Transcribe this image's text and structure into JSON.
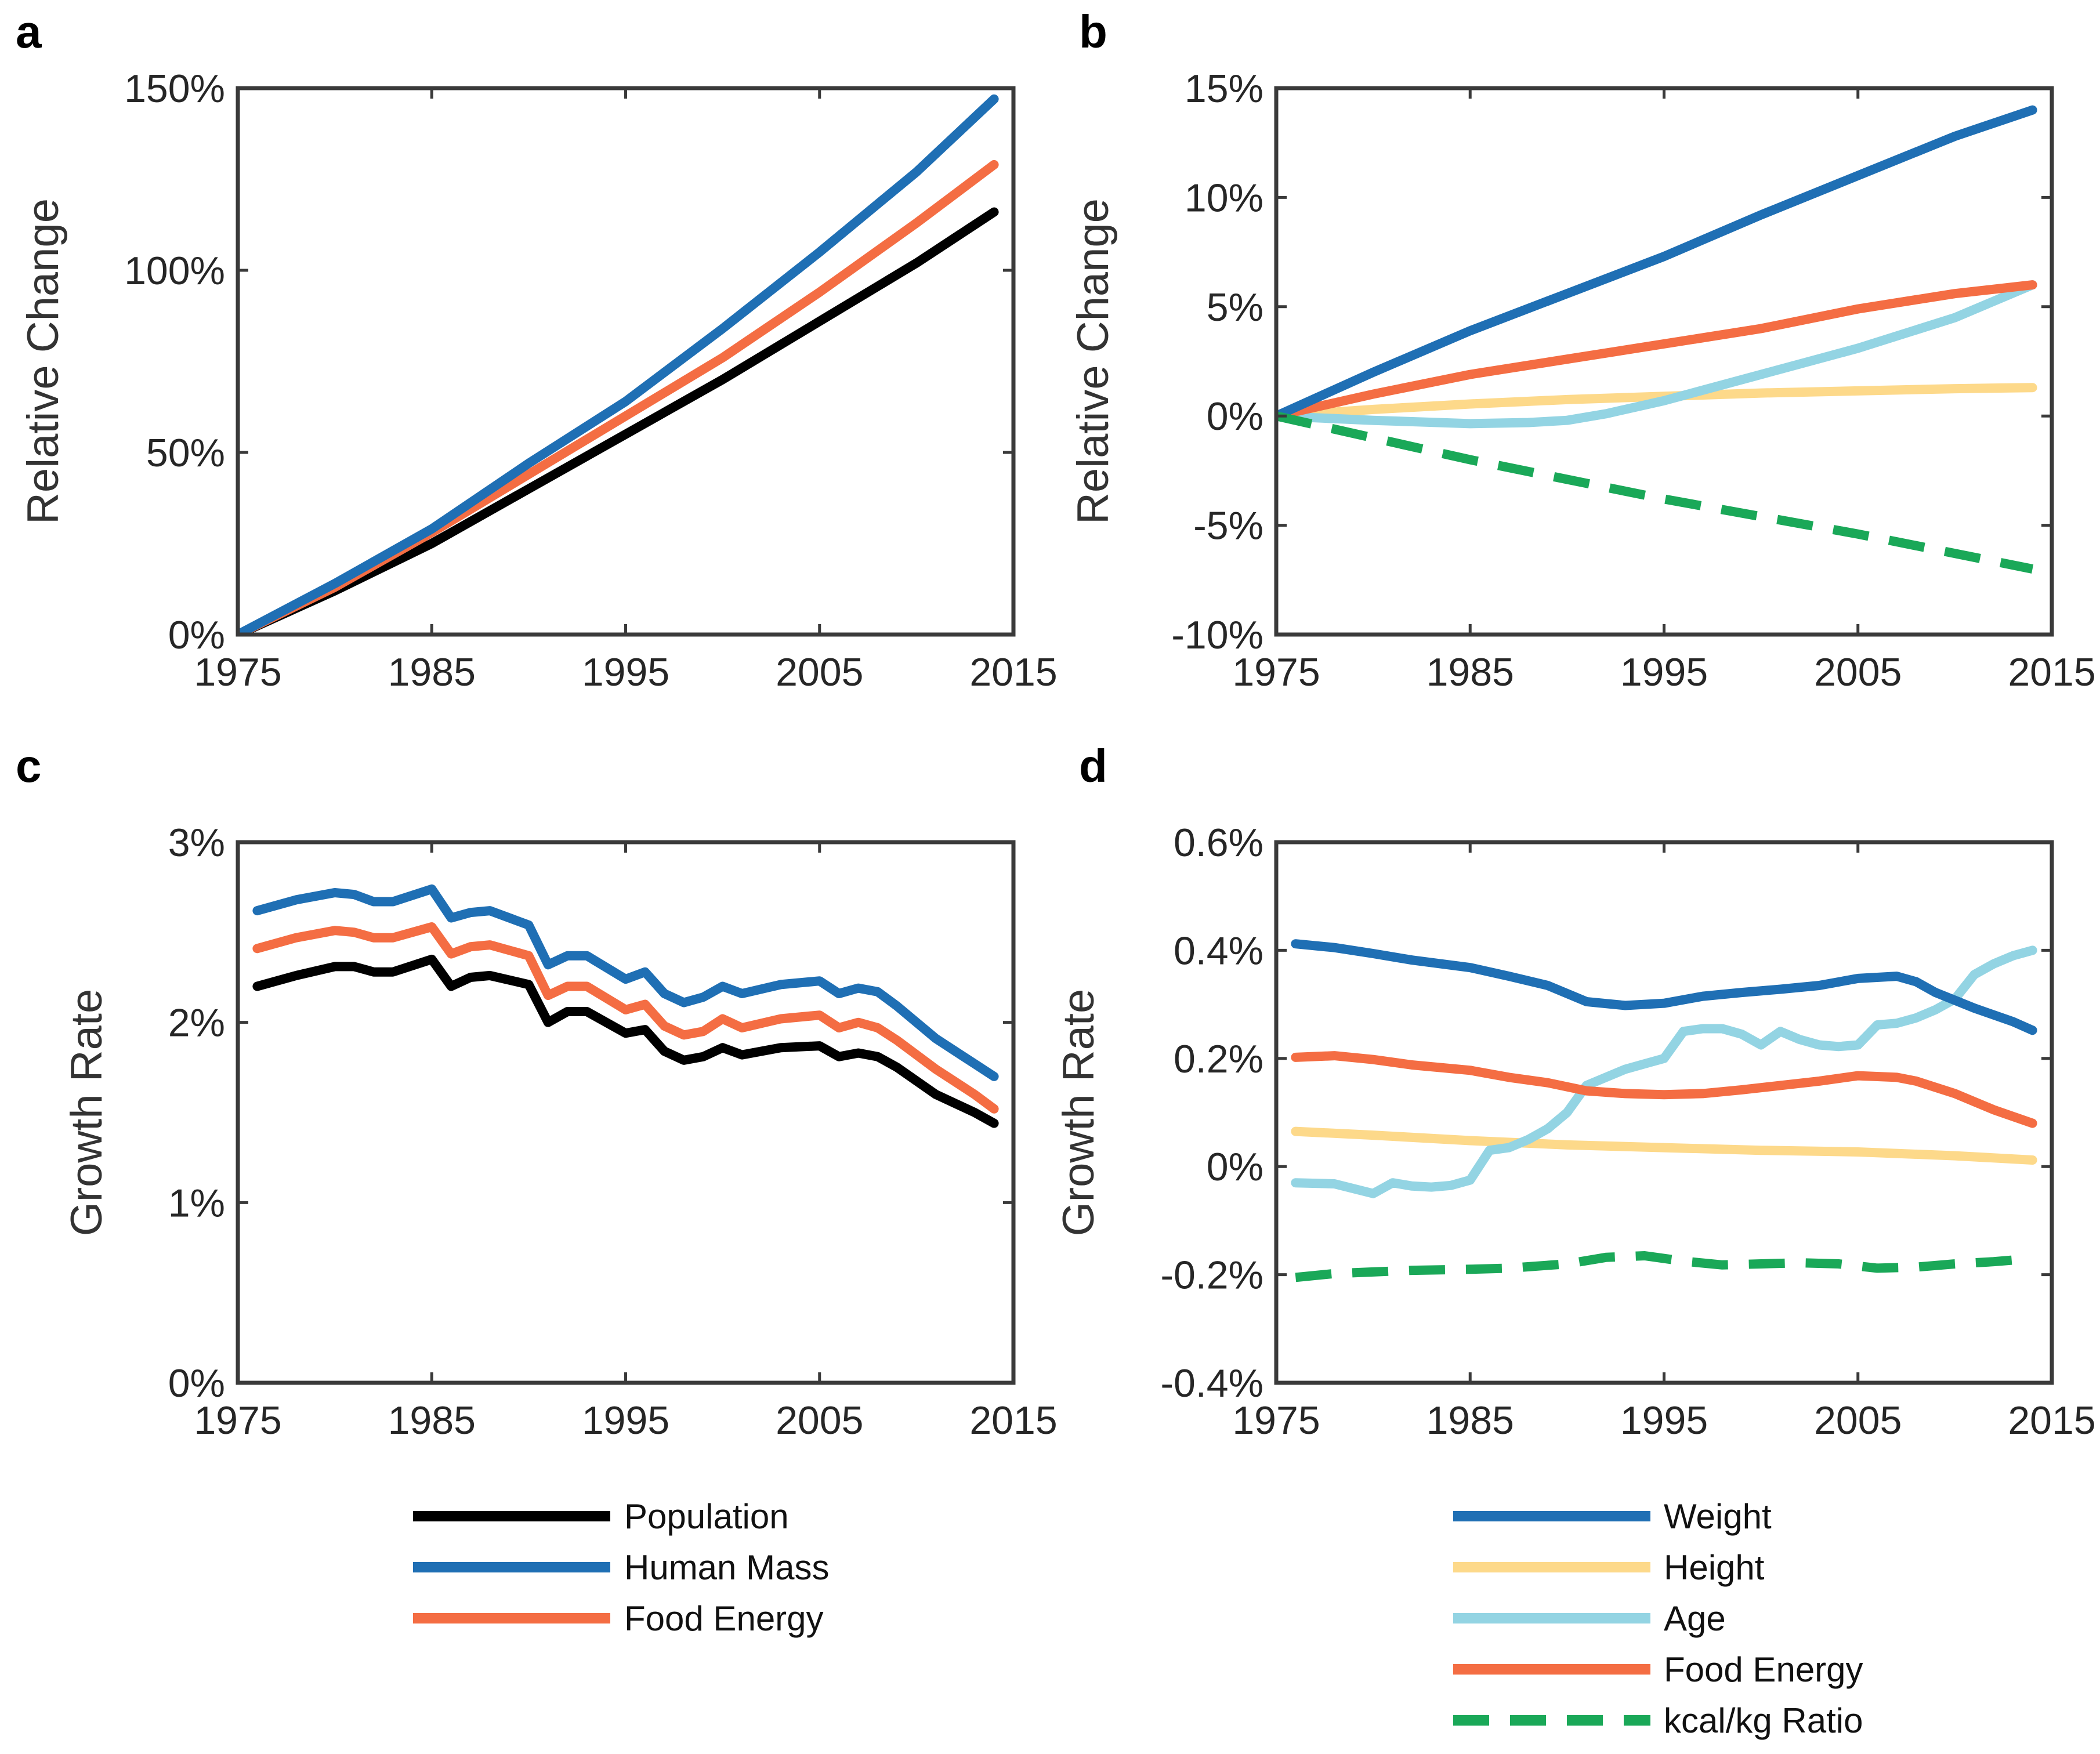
{
  "chart_data": [
    {
      "panel": "a",
      "type": "line",
      "xlabel": "",
      "ylabel": "Relative Change",
      "xlim": [
        1975,
        2015
      ],
      "ylim": [
        0,
        150
      ],
      "xticks": [
        1975,
        1985,
        1995,
        2005,
        2015
      ],
      "xtick_labels": [
        "1975",
        "1985",
        "1995",
        "2005",
        "2015"
      ],
      "yticks": [
        0,
        50,
        100,
        150
      ],
      "ytick_labels": [
        "0%",
        "50%",
        "100%",
        "150%"
      ],
      "series": [
        {
          "name": "Population",
          "color": "#000000",
          "x": [
            1975,
            1980,
            1985,
            1990,
            1995,
            2000,
            2005,
            2010,
            2014
          ],
          "y": [
            0,
            12,
            25,
            40,
            55,
            70,
            86,
            102,
            116
          ]
        },
        {
          "name": "Food Energy",
          "color": "#f46d43",
          "x": [
            1975,
            1980,
            1985,
            1990,
            1995,
            2000,
            2005,
            2010,
            2014
          ],
          "y": [
            0,
            13,
            28,
            44,
            60,
            76,
            94,
            113,
            129
          ]
        },
        {
          "name": "Human Mass",
          "color": "#1f6fb4",
          "x": [
            1975,
            1980,
            1985,
            1990,
            1995,
            2000,
            2005,
            2010,
            2014
          ],
          "y": [
            0,
            14,
            29,
            47,
            64,
            84,
            105,
            127,
            147
          ]
        }
      ]
    },
    {
      "panel": "b",
      "type": "line",
      "xlabel": "",
      "ylabel": "Relative Change",
      "xlim": [
        1975,
        2015
      ],
      "ylim": [
        -10,
        15
      ],
      "xticks": [
        1975,
        1985,
        1995,
        2005,
        2015
      ],
      "xtick_labels": [
        "1975",
        "1985",
        "1995",
        "2005",
        "2015"
      ],
      "yticks": [
        -10,
        -5,
        0,
        5,
        10,
        15
      ],
      "ytick_labels": [
        "-10%",
        "-5%",
        "0%",
        "5%",
        "10%",
        "15%"
      ],
      "series": [
        {
          "name": "Height",
          "color": "#fdd98a",
          "x": [
            1975,
            1980,
            1985,
            1990,
            1995,
            2000,
            2005,
            2010,
            2014
          ],
          "y": [
            0,
            0.3,
            0.55,
            0.75,
            0.9,
            1.05,
            1.15,
            1.25,
            1.3
          ]
        },
        {
          "name": "Age",
          "color": "#93d4e3",
          "x": [
            1975,
            1980,
            1985,
            1988,
            1990,
            1992,
            1995,
            2000,
            2005,
            2010,
            2014
          ],
          "y": [
            0,
            -0.2,
            -0.35,
            -0.3,
            -0.2,
            0.1,
            0.7,
            1.9,
            3.1,
            4.5,
            6.0
          ]
        },
        {
          "name": "Food Energy",
          "color": "#f46d43",
          "x": [
            1975,
            1980,
            1985,
            1990,
            1995,
            2000,
            2005,
            2010,
            2014
          ],
          "y": [
            0,
            1.0,
            1.9,
            2.6,
            3.3,
            4.0,
            4.9,
            5.6,
            6.0
          ]
        },
        {
          "name": "Weight",
          "color": "#1f6fb4",
          "x": [
            1975,
            1980,
            1985,
            1990,
            1995,
            2000,
            2005,
            2010,
            2014
          ],
          "y": [
            0,
            2.0,
            3.9,
            5.6,
            7.3,
            9.2,
            11.0,
            12.8,
            14.0
          ]
        },
        {
          "name": "kcal/kg Ratio",
          "color": "#1aa858",
          "dashed": true,
          "x": [
            1975,
            1985,
            1995,
            2005,
            2014
          ],
          "y": [
            0,
            -2.0,
            -3.8,
            -5.4,
            -7.0
          ]
        }
      ]
    },
    {
      "panel": "c",
      "type": "line",
      "xlabel": "",
      "ylabel": "Growth Rate",
      "xlim": [
        1975,
        2015
      ],
      "ylim": [
        0,
        3
      ],
      "xticks": [
        1975,
        1985,
        1995,
        2005,
        2015
      ],
      "xtick_labels": [
        "1975",
        "1985",
        "1995",
        "2005",
        "2015"
      ],
      "yticks": [
        0,
        1,
        2,
        3
      ],
      "ytick_labels": [
        "0%",
        "1%",
        "2%",
        "3%"
      ],
      "series": [
        {
          "name": "Population",
          "color": "#000000",
          "x": [
            1976,
            1978,
            1980,
            1981,
            1982,
            1983,
            1985,
            1986,
            1987,
            1988,
            1990,
            1991,
            1992,
            1993,
            1995,
            1996,
            1997,
            1998,
            1999,
            2000,
            2001,
            2003,
            2005,
            2006,
            2007,
            2008,
            2009,
            2011,
            2013,
            2014
          ],
          "y": [
            2.2,
            2.26,
            2.31,
            2.31,
            2.28,
            2.28,
            2.35,
            2.2,
            2.25,
            2.26,
            2.21,
            2.0,
            2.06,
            2.06,
            1.94,
            1.96,
            1.84,
            1.79,
            1.81,
            1.86,
            1.82,
            1.86,
            1.87,
            1.81,
            1.83,
            1.81,
            1.75,
            1.6,
            1.5,
            1.44
          ]
        },
        {
          "name": "Food Energy",
          "color": "#f46d43",
          "x": [
            1976,
            1978,
            1980,
            1981,
            1982,
            1983,
            1985,
            1986,
            1987,
            1988,
            1990,
            1991,
            1992,
            1993,
            1995,
            1996,
            1997,
            1998,
            1999,
            2000,
            2001,
            2003,
            2005,
            2006,
            2007,
            2008,
            2009,
            2011,
            2013,
            2014
          ],
          "y": [
            2.41,
            2.47,
            2.51,
            2.5,
            2.47,
            2.47,
            2.53,
            2.38,
            2.42,
            2.43,
            2.37,
            2.15,
            2.2,
            2.2,
            2.07,
            2.1,
            1.98,
            1.93,
            1.95,
            2.02,
            1.97,
            2.02,
            2.04,
            1.97,
            2.0,
            1.97,
            1.9,
            1.74,
            1.6,
            1.52
          ]
        },
        {
          "name": "Human Mass",
          "color": "#1f6fb4",
          "x": [
            1976,
            1978,
            1980,
            1981,
            1982,
            1983,
            1985,
            1986,
            1987,
            1988,
            1990,
            1991,
            1992,
            1993,
            1995,
            1996,
            1997,
            1998,
            1999,
            2000,
            2001,
            2003,
            2005,
            2006,
            2007,
            2008,
            2009,
            2011,
            2013,
            2014
          ],
          "y": [
            2.62,
            2.68,
            2.72,
            2.71,
            2.67,
            2.67,
            2.74,
            2.58,
            2.61,
            2.62,
            2.54,
            2.32,
            2.37,
            2.37,
            2.24,
            2.28,
            2.16,
            2.11,
            2.14,
            2.2,
            2.16,
            2.21,
            2.23,
            2.16,
            2.19,
            2.17,
            2.09,
            1.91,
            1.77,
            1.7
          ]
        }
      ]
    },
    {
      "panel": "d",
      "type": "line",
      "xlabel": "",
      "ylabel": "Growth Rate",
      "xlim": [
        1975,
        2015
      ],
      "ylim": [
        -0.4,
        0.6
      ],
      "xticks": [
        1975,
        1985,
        1995,
        2005,
        2015
      ],
      "xtick_labels": [
        "1975",
        "1985",
        "1995",
        "2005",
        "2015"
      ],
      "yticks": [
        -0.4,
        -0.2,
        0,
        0.2,
        0.4,
        0.6
      ],
      "ytick_labels": [
        "-0.4%",
        "-0.2%",
        "0%",
        "0.2%",
        "0.4%",
        "0.6%"
      ],
      "series": [
        {
          "name": "Height",
          "color": "#fdd98a",
          "x": [
            1976,
            1980,
            1985,
            1990,
            1995,
            2000,
            2005,
            2010,
            2014
          ],
          "y": [
            0.065,
            0.058,
            0.048,
            0.04,
            0.035,
            0.03,
            0.027,
            0.02,
            0.012
          ]
        },
        {
          "name": "Age",
          "color": "#93d4e3",
          "x": [
            1976,
            1978,
            1980,
            1981,
            1982,
            1983,
            1984,
            1985,
            1986,
            1987,
            1988,
            1989,
            1990,
            1991,
            1992,
            1993,
            1994,
            1995,
            1996,
            1997,
            1998,
            1999,
            2000,
            2001,
            2002,
            2003,
            2004,
            2005,
            2006,
            2007,
            2008,
            2009,
            2010,
            2011,
            2012,
            2013,
            2014
          ],
          "y": [
            -0.03,
            -0.032,
            -0.05,
            -0.03,
            -0.036,
            -0.038,
            -0.035,
            -0.025,
            0.03,
            0.035,
            0.05,
            0.07,
            0.1,
            0.15,
            0.165,
            0.18,
            0.19,
            0.2,
            0.25,
            0.255,
            0.255,
            0.245,
            0.225,
            0.25,
            0.235,
            0.225,
            0.222,
            0.225,
            0.262,
            0.265,
            0.275,
            0.29,
            0.31,
            0.355,
            0.375,
            0.39,
            0.4
          ]
        },
        {
          "name": "Food Energy",
          "color": "#f46d43",
          "x": [
            1976,
            1978,
            1980,
            1982,
            1985,
            1987,
            1989,
            1991,
            1993,
            1995,
            1997,
            1999,
            2001,
            2003,
            2005,
            2007,
            2008,
            2010,
            2012,
            2014
          ],
          "y": [
            0.202,
            0.205,
            0.198,
            0.188,
            0.178,
            0.165,
            0.155,
            0.14,
            0.135,
            0.133,
            0.135,
            0.142,
            0.15,
            0.158,
            0.168,
            0.165,
            0.158,
            0.135,
            0.105,
            0.08
          ]
        },
        {
          "name": "Weight",
          "color": "#1f6fb4",
          "x": [
            1976,
            1978,
            1980,
            1982,
            1985,
            1987,
            1989,
            1991,
            1993,
            1995,
            1997,
            1999,
            2001,
            2003,
            2005,
            2007,
            2008,
            2009,
            2011,
            2013,
            2014
          ],
          "y": [
            0.412,
            0.405,
            0.394,
            0.382,
            0.368,
            0.352,
            0.335,
            0.305,
            0.298,
            0.302,
            0.315,
            0.322,
            0.328,
            0.335,
            0.348,
            0.352,
            0.342,
            0.322,
            0.293,
            0.268,
            0.252
          ]
        },
        {
          "name": "kcal/kg Ratio",
          "color": "#1aa858",
          "dashed": true,
          "x": [
            1976,
            1978,
            1980,
            1982,
            1985,
            1987,
            1990,
            1992,
            1994,
            1996,
            1998,
            2000,
            2002,
            2004,
            2006,
            2008,
            2010,
            2012,
            2014
          ],
          "y": [
            -0.205,
            -0.198,
            -0.195,
            -0.192,
            -0.19,
            -0.188,
            -0.18,
            -0.168,
            -0.165,
            -0.175,
            -0.182,
            -0.18,
            -0.178,
            -0.18,
            -0.188,
            -0.186,
            -0.18,
            -0.176,
            -0.17
          ]
        }
      ]
    }
  ],
  "panel_letters": [
    "a",
    "b",
    "c",
    "d"
  ],
  "legends": {
    "left": [
      {
        "label": "Population",
        "color": "#000000",
        "dashed": false
      },
      {
        "label": "Human Mass",
        "color": "#1f6fb4",
        "dashed": false
      },
      {
        "label": "Food Energy",
        "color": "#f46d43",
        "dashed": false
      }
    ],
    "right": [
      {
        "label": "Weight",
        "color": "#1f6fb4",
        "dashed": false
      },
      {
        "label": "Height",
        "color": "#fdd98a",
        "dashed": false
      },
      {
        "label": "Age",
        "color": "#93d4e3",
        "dashed": false
      },
      {
        "label": "Food Energy",
        "color": "#f46d43",
        "dashed": false
      },
      {
        "label": "kcal/kg Ratio",
        "color": "#1aa858",
        "dashed": true
      }
    ]
  }
}
